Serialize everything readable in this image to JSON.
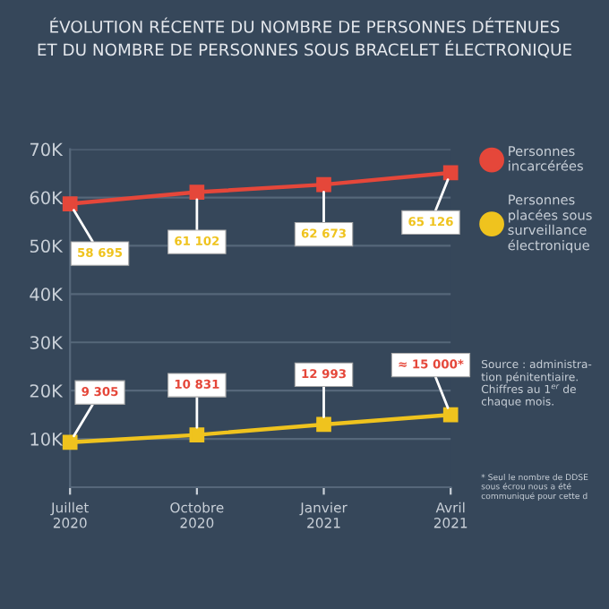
{
  "chart_data": {
    "type": "line",
    "title": "ÉVOLUTION RÉCENTE DU NOMBRE DE PERSONNES DÉTENUES\nET DU NOMBRE DE PERSONNES SOUS BRACELET ÉLECTRONIQUE",
    "categories": [
      "Juillet\n2020",
      "Octobre\n2020",
      "Janvier\n2021",
      "Avril\n2021"
    ],
    "series": [
      {
        "name": "Personnes\nincarcérées",
        "color": "#e5473a",
        "values": [
          58695,
          61102,
          62673,
          65126
        ],
        "value_labels": [
          "58 695",
          "61 102",
          "62 673",
          "65 126"
        ]
      },
      {
        "name": "Personnes\nplacées sous\nsurveillance\nélectronique",
        "color": "#efc31e",
        "values": [
          9305,
          10831,
          12993,
          15000
        ],
        "value_labels": [
          "9 305",
          "10 831",
          "12 993",
          "≈ 15 000*"
        ]
      }
    ],
    "ylim": [
      0,
      70000
    ],
    "yticks": [
      {
        "value": 10000,
        "label": "10K"
      },
      {
        "value": 20000,
        "label": "20K"
      },
      {
        "value": 30000,
        "label": "30K"
      },
      {
        "value": 40000,
        "label": "40K"
      },
      {
        "value": 50000,
        "label": "50K"
      },
      {
        "value": 60000,
        "label": "60K"
      },
      {
        "value": 70000,
        "label": "70K"
      }
    ],
    "grid": "y",
    "legend": "right",
    "marker": "square",
    "line_style": "solid",
    "annotations": [
      "Source : administra-\ntion pénitentiaire.\nChiffres au 1$^{er}$ de\nchaque mois.",
      "* Seul le nombre de DDSE\nsous écrou nous a été\ncommuniqué pour cette d"
    ]
  }
}
